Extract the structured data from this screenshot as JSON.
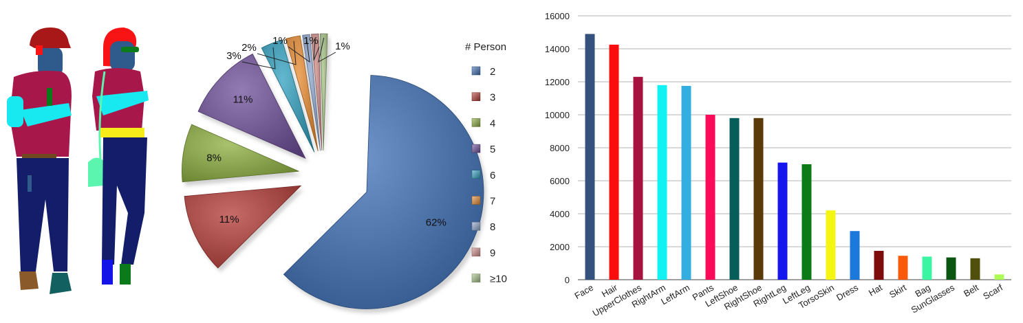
{
  "colors": {
    "skin": "#2f5a8c",
    "upper_clothes": "#a8174a",
    "pants": "#131d6a",
    "hair_hat": "#a81818",
    "arm": "#18e8f0",
    "belt": "#f5ec1a",
    "bag": "#5cf5b0",
    "shoe_left": "#8a5a2a",
    "shoe_right": "#126060",
    "sunglasses": "#0a7a1a",
    "blue_shoe": "#1414e8",
    "hair_red": "#f81414"
  },
  "chart_data": [
    {
      "type": "pie",
      "title": "",
      "legend_title": "# Person",
      "legend_position": "right",
      "labels": [
        "2",
        "3",
        "4",
        "5",
        "6",
        "7",
        "8",
        "9",
        "≥10"
      ],
      "values": [
        62,
        11,
        8,
        11,
        3,
        2,
        1,
        1,
        1
      ],
      "value_labels": [
        "62%",
        "11%",
        "8%",
        "11%",
        "3%",
        "2%",
        "1%",
        "1%",
        "1%"
      ],
      "colors": [
        "#3d6fb5",
        "#b33a36",
        "#8bad3e",
        "#6e4f9a",
        "#2fa0c0",
        "#e88a2e",
        "#8ea7cf",
        "#d18c8a",
        "#a8c488"
      ]
    },
    {
      "type": "bar",
      "title": "",
      "xlabel": "",
      "ylabel": "",
      "ylim": [
        0,
        16000
      ],
      "yticks": [
        0,
        2000,
        4000,
        6000,
        8000,
        10000,
        12000,
        14000,
        16000
      ],
      "grid": true,
      "categories": [
        "Face",
        "Hair",
        "UpperClothes",
        "RightArm",
        "LeftArm",
        "Pants",
        "LeftShoe",
        "RightShoe",
        "RightLeg",
        "LeftLeg",
        "TorsoSkin",
        "Dress",
        "Hat",
        "Skirt",
        "Bag",
        "SunGlasses",
        "Belt",
        "Scarf"
      ],
      "values": [
        14900,
        14250,
        12300,
        11800,
        11750,
        10000,
        9800,
        9800,
        7100,
        7000,
        4200,
        2950,
        1750,
        1450,
        1400,
        1350,
        1300,
        320
      ],
      "bar_colors": [
        "#35527f",
        "#fb0d0d",
        "#a6133e",
        "#12f2f2",
        "#33aee0",
        "#fb0b5a",
        "#055e59",
        "#5a3a09",
        "#1515ee",
        "#0b7b17",
        "#f5f514",
        "#1a79db",
        "#7e0c0c",
        "#fb5a0b",
        "#3bf5a3",
        "#0b5512",
        "#50500c",
        "#adfb56"
      ]
    }
  ]
}
